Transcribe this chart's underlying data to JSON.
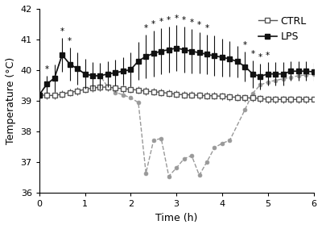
{
  "ctrl_x": [
    0,
    0.167,
    0.333,
    0.5,
    0.667,
    0.833,
    1.0,
    1.167,
    1.333,
    1.5,
    1.667,
    1.833,
    2.0,
    2.167,
    2.333,
    2.5,
    2.667,
    2.833,
    3.0,
    3.167,
    3.333,
    3.5,
    3.667,
    3.833,
    4.0,
    4.167,
    4.333,
    4.5,
    4.667,
    4.833,
    5.0,
    5.167,
    5.333,
    5.5,
    5.667,
    5.833,
    6.0
  ],
  "ctrl_y": [
    39.2,
    39.18,
    39.18,
    39.22,
    39.28,
    39.32,
    39.38,
    39.42,
    39.45,
    39.45,
    39.42,
    39.4,
    39.38,
    39.35,
    39.32,
    39.3,
    39.28,
    39.25,
    39.22,
    39.2,
    39.2,
    39.18,
    39.17,
    39.17,
    39.15,
    39.13,
    39.12,
    39.1,
    39.1,
    39.08,
    39.05,
    39.05,
    39.05,
    39.05,
    39.05,
    39.05,
    39.05
  ],
  "ctrl_err": [
    0.12,
    0.12,
    0.12,
    0.12,
    0.12,
    0.12,
    0.12,
    0.12,
    0.12,
    0.12,
    0.12,
    0.12,
    0.12,
    0.12,
    0.12,
    0.12,
    0.12,
    0.12,
    0.12,
    0.12,
    0.12,
    0.12,
    0.12,
    0.12,
    0.12,
    0.12,
    0.12,
    0.12,
    0.12,
    0.12,
    0.12,
    0.12,
    0.12,
    0.12,
    0.12,
    0.12,
    0.12
  ],
  "lps_x": [
    0,
    0.167,
    0.333,
    0.5,
    0.667,
    0.833,
    1.0,
    1.167,
    1.333,
    1.5,
    1.667,
    1.833,
    2.0,
    2.167,
    2.333,
    2.5,
    2.667,
    2.833,
    3.0,
    3.167,
    3.333,
    3.5,
    3.667,
    3.833,
    4.0,
    4.167,
    4.333,
    4.5,
    4.667,
    4.833,
    5.0,
    5.167,
    5.333,
    5.5,
    5.667,
    5.833,
    6.0
  ],
  "lps_y": [
    39.2,
    39.55,
    39.75,
    40.5,
    40.2,
    40.05,
    39.88,
    39.82,
    39.82,
    39.88,
    39.92,
    39.97,
    40.02,
    40.3,
    40.45,
    40.55,
    40.62,
    40.67,
    40.72,
    40.67,
    40.62,
    40.57,
    40.52,
    40.47,
    40.42,
    40.37,
    40.28,
    40.12,
    39.88,
    39.8,
    39.88,
    39.88,
    39.88,
    39.97,
    39.97,
    39.97,
    39.95
  ],
  "lps_err": [
    0.18,
    0.28,
    0.45,
    0.55,
    0.55,
    0.52,
    0.48,
    0.45,
    0.42,
    0.42,
    0.42,
    0.45,
    0.55,
    0.62,
    0.72,
    0.75,
    0.75,
    0.75,
    0.75,
    0.75,
    0.72,
    0.68,
    0.65,
    0.65,
    0.62,
    0.58,
    0.52,
    0.48,
    0.45,
    0.42,
    0.38,
    0.38,
    0.38,
    0.32,
    0.32,
    0.32,
    0.3
  ],
  "ghost_x": [
    0,
    0.167,
    0.333,
    0.5,
    0.667,
    0.833,
    1.0,
    1.167,
    1.333,
    1.5,
    1.667,
    1.833,
    2.0,
    2.167,
    2.333,
    2.5,
    2.667,
    2.833,
    3.0,
    3.167,
    3.333,
    3.5,
    3.667,
    3.833,
    4.0,
    4.167,
    4.5,
    4.667,
    4.833,
    5.0,
    5.167,
    5.333,
    5.5,
    5.667,
    5.833,
    6.0
  ],
  "ghost_y": [
    39.2,
    39.55,
    39.75,
    40.5,
    40.2,
    40.05,
    39.88,
    39.82,
    39.82,
    39.45,
    39.28,
    39.2,
    39.1,
    38.95,
    36.65,
    37.72,
    37.78,
    36.55,
    36.82,
    37.12,
    37.22,
    36.58,
    37.02,
    37.48,
    37.62,
    37.72,
    38.72,
    39.25,
    39.52,
    39.62,
    39.67,
    39.72,
    39.77,
    39.82,
    39.85,
    39.88
  ],
  "star_x": [
    0.167,
    0.5,
    0.667,
    2.333,
    2.5,
    2.667,
    2.833,
    3.0,
    3.167,
    3.333,
    3.5,
    3.667,
    4.5,
    4.667,
    4.833,
    5.0
  ],
  "star_yerr": [
    0.28,
    0.55,
    0.55,
    0.72,
    0.75,
    0.75,
    0.75,
    0.75,
    0.75,
    0.72,
    0.68,
    0.65,
    0.48,
    0.45,
    0.42,
    0.38
  ],
  "star_ytop": [
    39.55,
    40.5,
    40.2,
    40.45,
    40.55,
    40.62,
    40.67,
    40.72,
    40.67,
    40.62,
    40.57,
    40.52,
    40.12,
    39.88,
    39.8,
    39.88
  ],
  "xlabel": "Time (h)",
  "ylabel": "Temperature (°C)",
  "xlim": [
    0,
    6
  ],
  "ylim": [
    36,
    42
  ],
  "yticks": [
    36,
    37,
    38,
    39,
    40,
    41,
    42
  ],
  "xticks": [
    0,
    1,
    2,
    3,
    4,
    5,
    6
  ],
  "legend_ctrl": "CTRL",
  "legend_lps": "LPS",
  "ctrl_color": "#555555",
  "lps_color": "#111111",
  "ghost_color": "#999999",
  "background_color": "#ffffff"
}
